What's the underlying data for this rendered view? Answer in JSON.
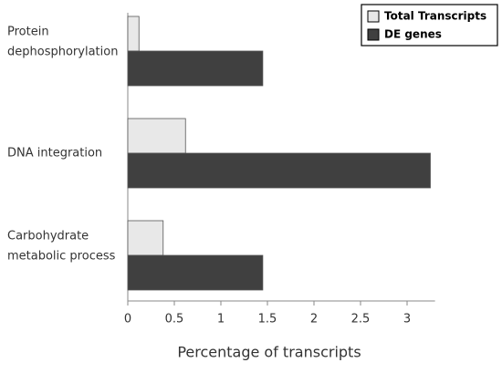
{
  "chart_data": {
    "type": "bar",
    "orientation": "horizontal",
    "categories": [
      [
        "Protein",
        "dephosphorylation"
      ],
      [
        "DNA integration"
      ],
      [
        "Carbohydrate",
        "metabolic process"
      ]
    ],
    "series": [
      {
        "name": "Total Transcripts",
        "color": "#e8e8e8",
        "values": [
          0.12,
          0.62,
          0.38
        ]
      },
      {
        "name": "DE genes",
        "color": "#404040",
        "values": [
          1.45,
          3.25,
          1.45
        ]
      }
    ],
    "xlabel": "Percentage of transcripts",
    "xlim": [
      0,
      3.3
    ],
    "xticks": [
      0,
      0.5,
      1,
      1.5,
      2,
      2.5,
      3
    ],
    "legend": "upper right",
    "grid": false
  }
}
